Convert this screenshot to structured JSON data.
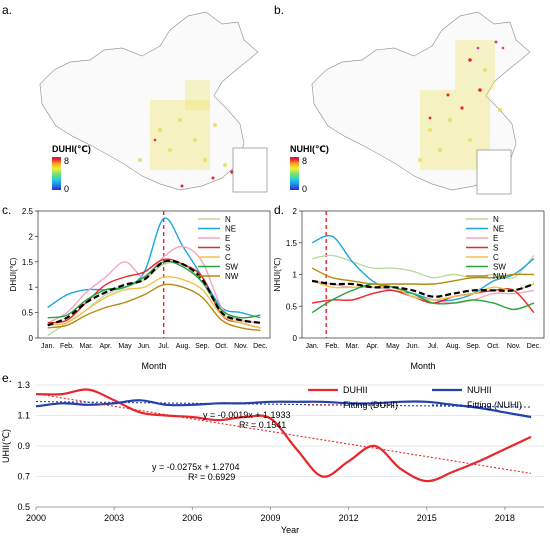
{
  "panels": {
    "a": {
      "label": "a.",
      "legend_title": "DUHI(℃)",
      "legend_max": "8",
      "legend_min": "0"
    },
    "b": {
      "label": "b.",
      "legend_title": "NUHI(℃)",
      "legend_max": "8",
      "legend_min": "0"
    },
    "c": {
      "label": "c."
    },
    "d": {
      "label": "d."
    },
    "e": {
      "label": "e."
    }
  },
  "legend_colors": [
    "#2b2bd6",
    "#1e9bf0",
    "#2fd6c8",
    "#7fe36b",
    "#f2f03a",
    "#f5a623",
    "#e8262b",
    "#c2185b"
  ],
  "chart_data": [
    {
      "id": "c",
      "type": "line",
      "ylabel": "DHUI(℃)",
      "xlabel": "Month",
      "categories": [
        "Jan.",
        "Feb.",
        "Mar.",
        "Apr.",
        "May",
        "Jun.",
        "Jul.",
        "Aug.",
        "Sep.",
        "Oct.",
        "Nov.",
        "Dec."
      ],
      "ylim": [
        0,
        2.5
      ],
      "yticks": [
        "0",
        "0.5",
        "1",
        "1.5",
        "2",
        "2.5"
      ],
      "vline_index": 6,
      "series": [
        {
          "name": "N",
          "color": "#b9dc9c",
          "values": [
            0.05,
            0.3,
            0.55,
            0.85,
            1.0,
            1.15,
            1.45,
            1.45,
            1.1,
            0.5,
            0.35,
            0.3
          ]
        },
        {
          "name": "NE",
          "color": "#1aa5e0",
          "values": [
            0.6,
            0.85,
            0.95,
            0.95,
            1.0,
            1.3,
            2.35,
            1.8,
            1.2,
            0.6,
            0.5,
            0.4
          ]
        },
        {
          "name": "E",
          "color": "#f2a7bd",
          "values": [
            0.3,
            0.5,
            0.9,
            1.2,
            1.5,
            1.2,
            1.6,
            1.8,
            1.5,
            0.6,
            0.35,
            0.3
          ]
        },
        {
          "name": "S",
          "color": "#e8262b",
          "values": [
            0.3,
            0.35,
            0.7,
            1.05,
            1.2,
            1.3,
            1.55,
            1.45,
            1.2,
            0.45,
            0.3,
            0.2
          ]
        },
        {
          "name": "C",
          "color": "#f0c24a",
          "values": [
            0.25,
            0.3,
            0.55,
            0.8,
            0.95,
            1.0,
            1.2,
            1.15,
            0.95,
            0.45,
            0.3,
            0.2
          ]
        },
        {
          "name": "SW",
          "color": "#26a43b",
          "values": [
            0.4,
            0.45,
            0.75,
            0.95,
            1.0,
            1.2,
            1.5,
            1.4,
            1.1,
            0.55,
            0.4,
            0.45
          ]
        },
        {
          "name": "NW",
          "color": "#b58a0e",
          "values": [
            0.2,
            0.25,
            0.45,
            0.6,
            0.7,
            0.85,
            1.05,
            1.0,
            0.8,
            0.35,
            0.2,
            0.15
          ]
        },
        {
          "name": "",
          "color": "#000000",
          "dashed": true,
          "values": [
            0.25,
            0.4,
            0.7,
            0.9,
            1.05,
            1.15,
            1.5,
            1.45,
            1.15,
            0.5,
            0.35,
            0.3
          ]
        }
      ]
    },
    {
      "id": "d",
      "type": "line",
      "ylabel": "NHUI(℃)",
      "xlabel": "Month",
      "categories": [
        "Jan.",
        "Feb.",
        "Mar.",
        "Apr.",
        "May",
        "Jun.",
        "Jul.",
        "Aug.",
        "Sep.",
        "Oct.",
        "Nov.",
        "Dec."
      ],
      "ylim": [
        0,
        2
      ],
      "yticks": [
        "0",
        "0.5",
        "1",
        "1.5",
        "2"
      ],
      "vline_index": 0.7,
      "series": [
        {
          "name": "N",
          "color": "#b9dc9c",
          "values": [
            1.25,
            1.3,
            1.2,
            1.1,
            1.1,
            1.05,
            0.95,
            1.0,
            0.95,
            1.0,
            0.95,
            1.3
          ]
        },
        {
          "name": "NE",
          "color": "#1aa5e0",
          "values": [
            1.5,
            1.6,
            1.2,
            0.9,
            0.75,
            0.7,
            0.6,
            0.6,
            0.7,
            0.9,
            1.0,
            1.25
          ]
        },
        {
          "name": "E",
          "color": "#f2a7bd",
          "values": [
            0.9,
            0.85,
            0.8,
            0.8,
            0.75,
            0.65,
            0.6,
            0.55,
            0.6,
            0.7,
            0.7,
            0.75
          ]
        },
        {
          "name": "S",
          "color": "#e8262b",
          "values": [
            0.55,
            0.6,
            0.6,
            0.7,
            0.75,
            0.65,
            0.55,
            0.65,
            0.7,
            0.75,
            0.75,
            0.4
          ]
        },
        {
          "name": "C",
          "color": "#f0c24a",
          "values": [
            0.9,
            0.8,
            0.8,
            0.8,
            0.8,
            0.65,
            0.6,
            0.65,
            0.7,
            0.8,
            0.75,
            0.85
          ]
        },
        {
          "name": "SW",
          "color": "#26a43b",
          "values": [
            0.4,
            0.6,
            0.75,
            0.85,
            0.8,
            0.7,
            0.55,
            0.55,
            0.6,
            0.55,
            0.45,
            0.55
          ]
        },
        {
          "name": "NW",
          "color": "#b58a0e",
          "values": [
            1.1,
            0.95,
            0.9,
            0.85,
            0.85,
            0.85,
            0.85,
            0.9,
            0.95,
            0.95,
            1.0,
            1.0
          ]
        },
        {
          "name": "",
          "color": "#000000",
          "dashed": true,
          "values": [
            0.9,
            0.85,
            0.85,
            0.8,
            0.8,
            0.75,
            0.65,
            0.7,
            0.75,
            0.75,
            0.75,
            0.85
          ]
        }
      ]
    },
    {
      "id": "e",
      "type": "line",
      "ylabel": "UHII(℃)",
      "xlabel": "Year",
      "xlim": [
        2000,
        2019.5
      ],
      "xticks": [
        2000,
        2003,
        2006,
        2009,
        2012,
        2015,
        2018
      ],
      "ylim": [
        0.5,
        1.3
      ],
      "yticks": [
        "0.5",
        "0.7",
        "0.9",
        "1.1",
        "1.3"
      ],
      "series": [
        {
          "name": "DUHII",
          "color": "#e8262b",
          "x": [
            2000,
            2001,
            2002,
            2003,
            2004,
            2005,
            2006,
            2007,
            2008,
            2009,
            2010,
            2011,
            2012,
            2013,
            2014,
            2015,
            2016,
            2017,
            2018,
            2019
          ],
          "values": [
            1.24,
            1.24,
            1.27,
            1.2,
            1.12,
            1.1,
            1.09,
            1.07,
            1.09,
            1.08,
            0.88,
            0.7,
            0.8,
            0.9,
            0.75,
            0.67,
            0.73,
            0.8,
            0.88,
            0.96
          ]
        },
        {
          "name": "NUHII",
          "color": "#2341a8",
          "x": [
            2000,
            2001,
            2002,
            2003,
            2004,
            2005,
            2006,
            2007,
            2008,
            2009,
            2010,
            2011,
            2012,
            2013,
            2014,
            2015,
            2016,
            2017,
            2018,
            2019
          ],
          "values": [
            1.16,
            1.18,
            1.17,
            1.18,
            1.2,
            1.17,
            1.17,
            1.18,
            1.18,
            1.19,
            1.19,
            1.19,
            1.18,
            1.18,
            1.19,
            1.19,
            1.17,
            1.15,
            1.12,
            1.09
          ]
        },
        {
          "name": "Fitting (DUHI)",
          "color": "#e8262b",
          "dotted": true,
          "fit": {
            "slope": -0.0275,
            "intercept": 1.2704
          }
        },
        {
          "name": "Fitting (NUHI)",
          "color": "#2341a8",
          "dotted": true,
          "fit": {
            "slope": -0.0019,
            "intercept": 1.1933
          }
        }
      ],
      "annotations": [
        {
          "line1": "y = -0.0019x + 1.1933",
          "line2": "R² = 0.1541"
        },
        {
          "line1": "y = -0.0275x + 1.2704",
          "line2": "R² = 0.6929"
        }
      ]
    }
  ]
}
